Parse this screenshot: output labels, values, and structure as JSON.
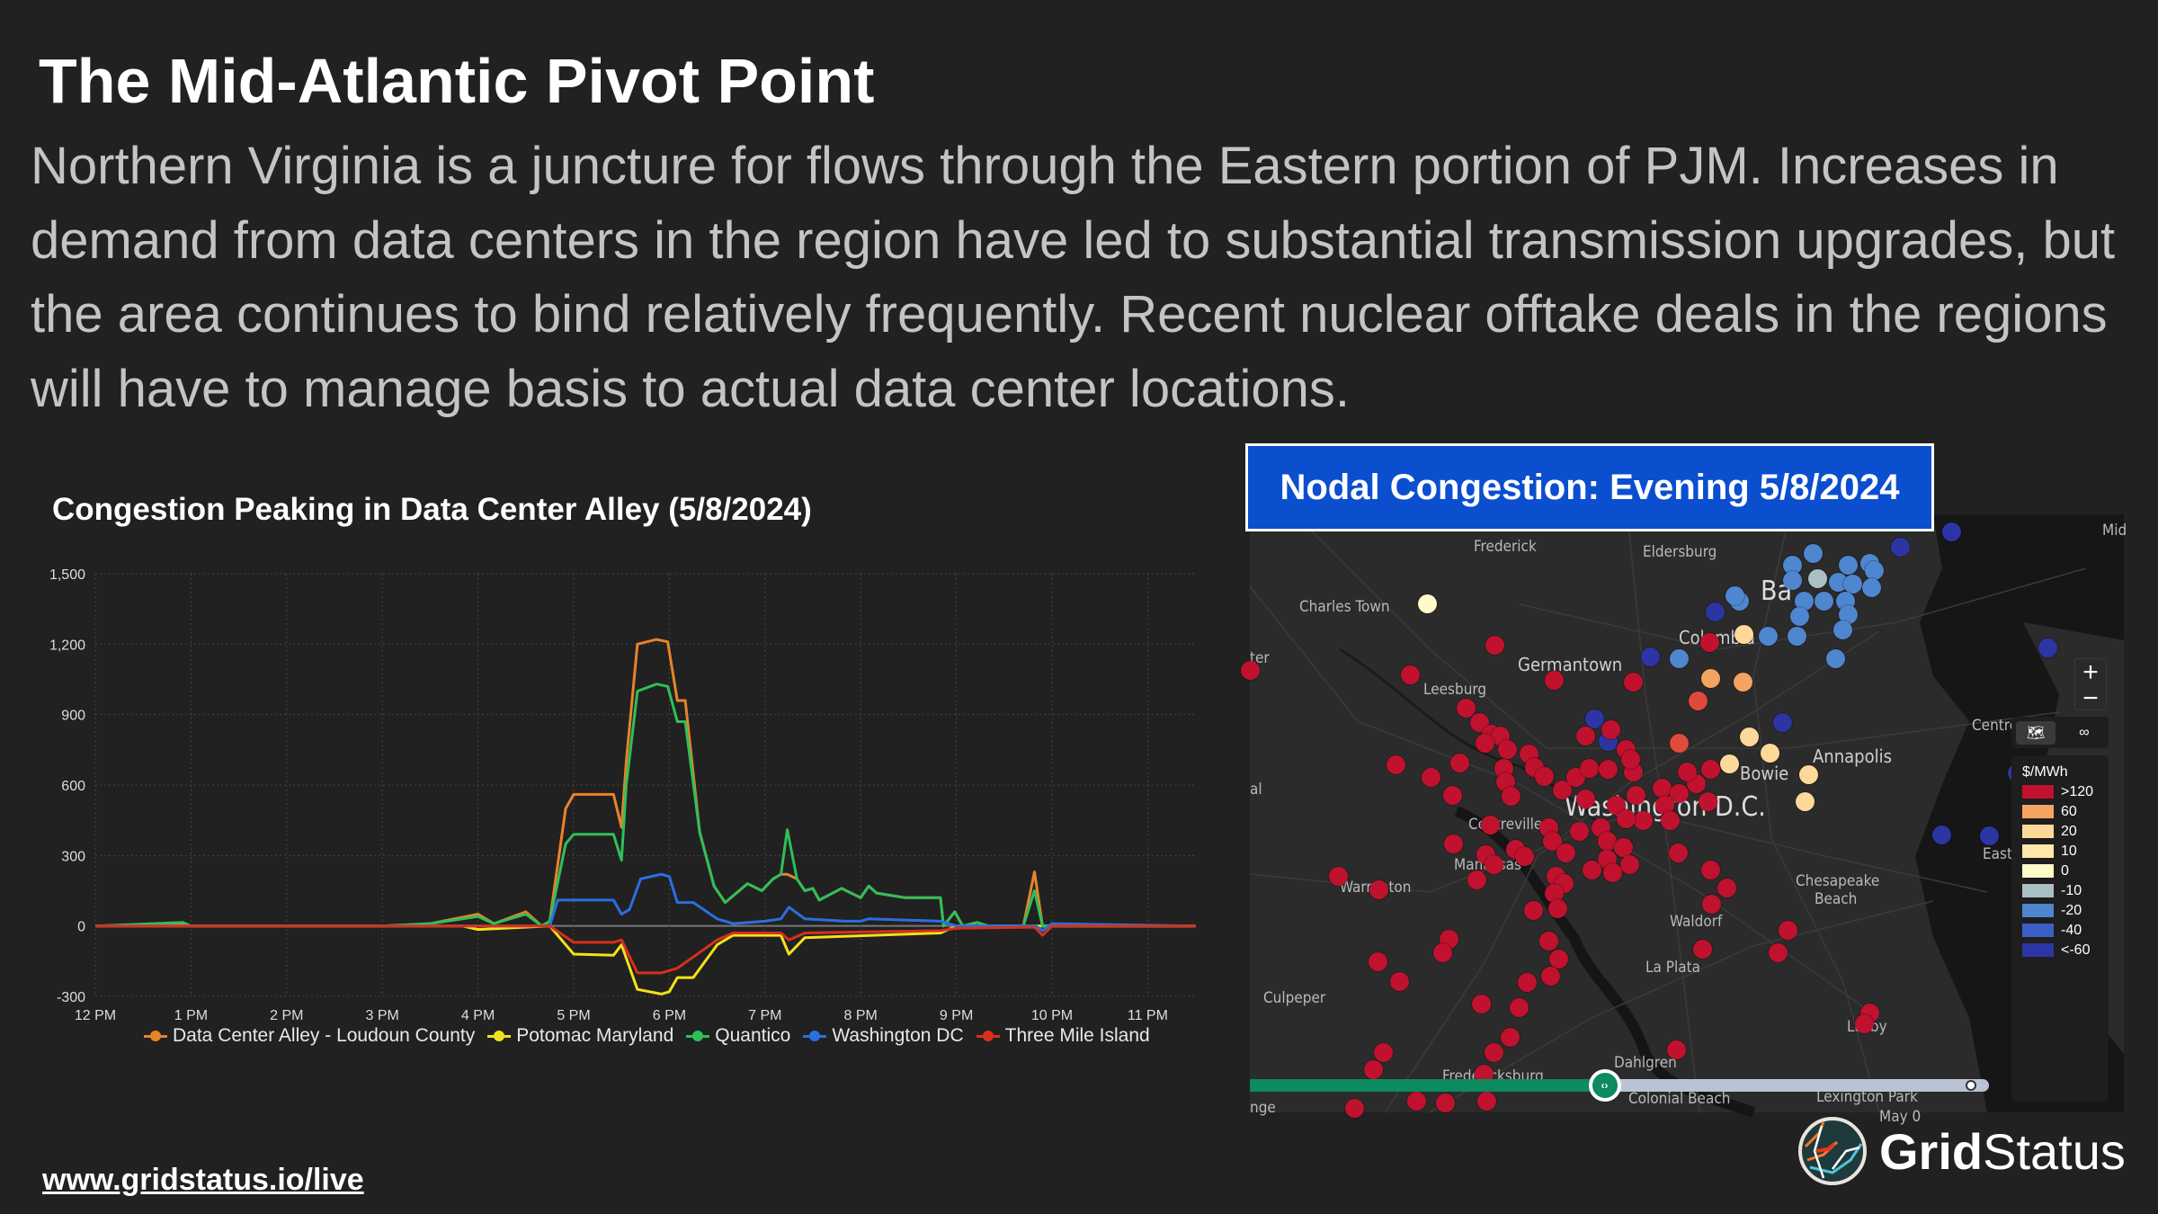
{
  "header": {
    "title": "The Mid-Atlantic Pivot Point",
    "body": "Northern Virginia is a juncture for flows through the Eastern portion of PJM. Increases in demand from data centers in the region have led to substantial transmission upgrades, but the area continues to bind relatively frequently. Recent nuclear offtake deals in the regions will have to manage basis to actual data center locations."
  },
  "chart_data": {
    "type": "line",
    "title": "Congestion Peaking in Data Center Alley (5/8/2024)",
    "xlabel": "",
    "ylabel": "",
    "ylim": [
      -300,
      1500
    ],
    "yticks": [
      "1,500",
      "1,200",
      "900",
      "600",
      "300",
      "0",
      "-300"
    ],
    "ytick_values": [
      1500,
      1200,
      900,
      600,
      300,
      0,
      -300
    ],
    "xticks": [
      "12 PM",
      "1 PM",
      "2 PM",
      "3 PM",
      "4 PM",
      "5 PM",
      "6 PM",
      "7 PM",
      "8 PM",
      "9 PM",
      "10 PM",
      "11 PM"
    ],
    "xlim": [
      "12:00",
      "23:30"
    ],
    "grid": true,
    "legend": "bottom",
    "series": [
      {
        "name": "Data Center Alley - Loudoun County",
        "color": "#e8832a",
        "x": [
          "12:00",
          "12:55",
          "13:00",
          "15:00",
          "15:30",
          "16:00",
          "16:10",
          "16:30",
          "16:40",
          "16:45",
          "16:55",
          "17:00",
          "17:25",
          "17:30",
          "17:33",
          "17:40",
          "17:52",
          "17:59",
          "18:05",
          "18:10",
          "18:19",
          "18:28",
          "18:35",
          "18:49",
          "18:58",
          "19:05",
          "19:10",
          "19:14",
          "19:20",
          "19:25",
          "19:30",
          "19:34",
          "19:48",
          "20:00",
          "20:05",
          "20:10",
          "20:28",
          "20:50",
          "20:52",
          "20:59",
          "21:04",
          "21:13",
          "21:20",
          "21:42",
          "21:49",
          "21:54",
          "22:00",
          "23:30"
        ],
        "y": [
          0,
          10,
          0,
          0,
          10,
          50,
          10,
          60,
          0,
          20,
          500,
          560,
          560,
          420,
          700,
          1200,
          1220,
          1210,
          960,
          960,
          400,
          170,
          100,
          180,
          150,
          200,
          220,
          220,
          200,
          150,
          160,
          110,
          160,
          120,
          170,
          140,
          120,
          120,
          0,
          60,
          0,
          15,
          0,
          0,
          230,
          0,
          0,
          0
        ]
      },
      {
        "name": "Potomac Maryland",
        "color": "#f2e21b",
        "x": [
          "12:00",
          "15:50",
          "16:00",
          "16:45",
          "17:00",
          "17:25",
          "17:30",
          "17:40",
          "17:55",
          "18:00",
          "18:05",
          "18:15",
          "18:30",
          "18:40",
          "19:10",
          "19:15",
          "19:25",
          "20:50",
          "21:00",
          "23:30"
        ],
        "y": [
          0,
          0,
          -15,
          0,
          -120,
          -125,
          -80,
          -270,
          -290,
          -280,
          -220,
          -220,
          -80,
          -40,
          -40,
          -120,
          -50,
          -30,
          0,
          0
        ]
      },
      {
        "name": "Quantico",
        "color": "#2fbf5a",
        "x": [
          "12:00",
          "12:55",
          "13:00",
          "15:00",
          "15:30",
          "16:00",
          "16:10",
          "16:30",
          "16:40",
          "16:45",
          "16:55",
          "17:00",
          "17:25",
          "17:30",
          "17:33",
          "17:40",
          "17:52",
          "17:59",
          "18:05",
          "18:10",
          "18:19",
          "18:28",
          "18:35",
          "18:49",
          "18:58",
          "19:05",
          "19:10",
          "19:14",
          "19:20",
          "19:25",
          "19:30",
          "19:34",
          "19:48",
          "20:00",
          "20:05",
          "20:10",
          "20:28",
          "20:50",
          "20:52",
          "20:59",
          "21:04",
          "21:13",
          "21:20",
          "21:42",
          "21:49",
          "21:54",
          "22:00",
          "23:30"
        ],
        "y": [
          0,
          15,
          0,
          0,
          10,
          40,
          10,
          50,
          0,
          20,
          350,
          390,
          390,
          280,
          600,
          1000,
          1030,
          1020,
          870,
          870,
          400,
          170,
          100,
          180,
          150,
          200,
          220,
          410,
          200,
          150,
          160,
          110,
          160,
          120,
          170,
          140,
          120,
          120,
          0,
          60,
          0,
          15,
          0,
          0,
          150,
          0,
          0,
          0
        ]
      },
      {
        "name": "Washington DC",
        "color": "#2a6fe0",
        "x": [
          "12:00",
          "16:45",
          "16:50",
          "17:25",
          "17:30",
          "17:35",
          "17:42",
          "17:55",
          "18:00",
          "18:05",
          "18:15",
          "18:30",
          "18:40",
          "19:00",
          "19:10",
          "19:15",
          "19:25",
          "19:50",
          "20:00",
          "20:05",
          "20:50",
          "21:00",
          "21:50",
          "21:54",
          "22:00",
          "23:30"
        ],
        "y": [
          0,
          0,
          110,
          110,
          50,
          70,
          200,
          220,
          210,
          100,
          100,
          30,
          10,
          20,
          30,
          80,
          30,
          20,
          20,
          30,
          20,
          0,
          0,
          -20,
          10,
          0
        ]
      },
      {
        "name": "Three Mile Island",
        "color": "#d8301c",
        "x": [
          "12:00",
          "16:45",
          "17:00",
          "17:25",
          "17:30",
          "17:40",
          "17:55",
          "18:00",
          "18:05",
          "18:30",
          "18:40",
          "19:10",
          "19:15",
          "19:25",
          "20:50",
          "21:00",
          "21:49",
          "21:54",
          "22:00",
          "23:30"
        ],
        "y": [
          0,
          0,
          -70,
          -70,
          -60,
          -200,
          -200,
          -190,
          -180,
          -60,
          -30,
          -30,
          -60,
          -30,
          -20,
          -10,
          -5,
          -40,
          0,
          0
        ]
      }
    ]
  },
  "map": {
    "title": "Nodal Congestion: Evening 5/8/2024",
    "labels": [
      "Frederick",
      "Eldersburg",
      "Charles Town",
      "Germantown",
      "Leesburg",
      "Ba",
      "Columbia",
      "Annapolis",
      "Bowie",
      "Washington D.C.",
      "Centreville",
      "Manassas",
      "Warrenton",
      "Chesapeake",
      "Beach",
      "Waldorf",
      "La Plata",
      "Culpeper",
      "Dahlgren",
      "Fredericksburg",
      "Colonial Beach",
      "Lexington Park",
      "Lusby",
      "Centreville",
      "East",
      "Mid",
      "ter",
      "al",
      "nge",
      "May 0"
    ],
    "zoom_in": "+",
    "zoom_out": "−",
    "legend": {
      "unit": "$/MWh",
      "items": [
        {
          "label": ">120",
          "color": "#c0112e"
        },
        {
          "label": "60",
          "color": "#f4a460"
        },
        {
          "label": "20",
          "color": "#fdd999"
        },
        {
          "label": "10",
          "color": "#fee9a8"
        },
        {
          "label": "0",
          "color": "#fffbc8"
        },
        {
          "label": "-10",
          "color": "#a9bfc4"
        },
        {
          "label": "-20",
          "color": "#4e86cf"
        },
        {
          "label": "-40",
          "color": "#3b5fc4"
        },
        {
          "label": "<-60",
          "color": "#2c35a3"
        }
      ]
    },
    "time_slider_progress": 0.48
  },
  "footer": {
    "link": "www.gridstatus.io/live",
    "logo_bold": "Grid",
    "logo_regular": "Status"
  }
}
